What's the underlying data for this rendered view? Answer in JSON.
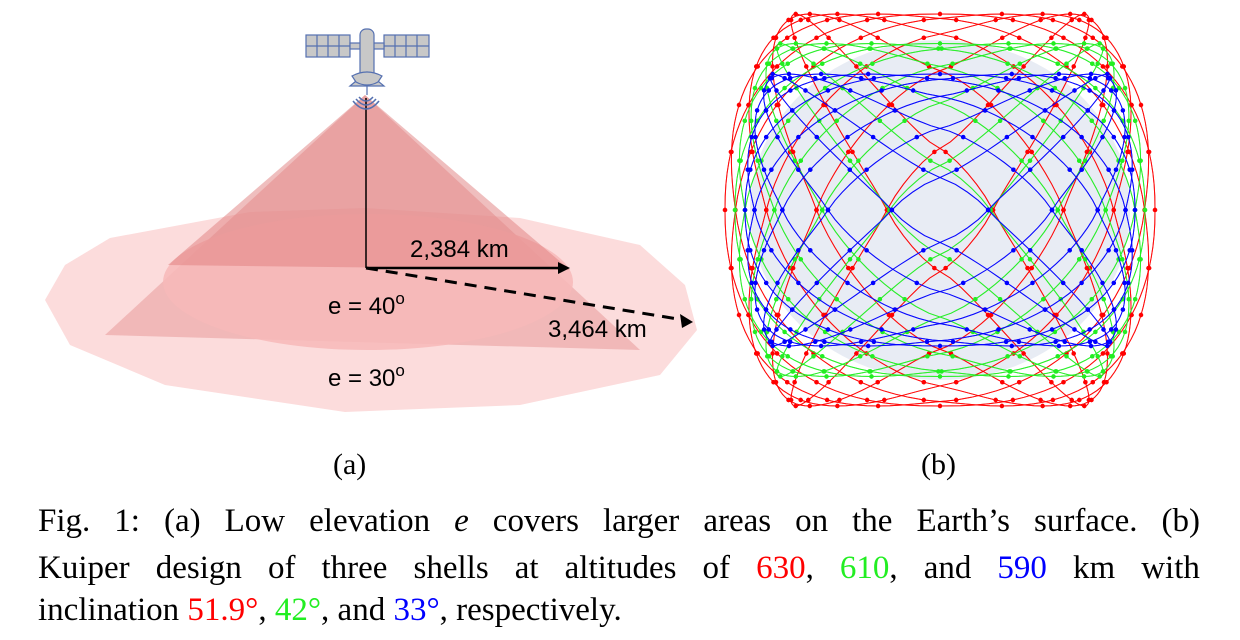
{
  "panel_a": {
    "label_inner_distance": "2,384 km",
    "label_outer_distance": "3,464 km",
    "label_inner_elevation": "e = 40",
    "label_outer_elevation": "e = 30",
    "degree_mark": "o",
    "subfigure_label": "(a)",
    "icons": [
      "satellite-icon",
      "signal-icon"
    ]
  },
  "panel_b": {
    "subfigure_label": "(b)",
    "shells": [
      {
        "color": "#ff0000",
        "altitude_km": 630,
        "inclination_deg": 51.9
      },
      {
        "color": "#22ee22",
        "altitude_km": 610,
        "inclination_deg": 42
      },
      {
        "color": "#0000ff",
        "altitude_km": 590,
        "inclination_deg": 33
      }
    ]
  },
  "caption": {
    "line1": [
      "Fig.",
      "1:",
      "(a)",
      "Low",
      "elevation",
      "e",
      "covers",
      "larger",
      "areas",
      "on",
      "the",
      "Earth’s",
      "surface.",
      "(b)"
    ],
    "line2_words": [
      "Kuiper",
      "design",
      "of",
      "three",
      "shells",
      "at",
      "altitudes",
      "of"
    ],
    "alt_red": "630",
    "alt_green": "610",
    "alt_blue": "590",
    "and": "and",
    "km_with": [
      "km",
      "with"
    ],
    "inclination": "inclination",
    "inc_red": "51.9°",
    "inc_green": "42°",
    "inc_blue": "33°",
    "respectively": ", respectively."
  }
}
